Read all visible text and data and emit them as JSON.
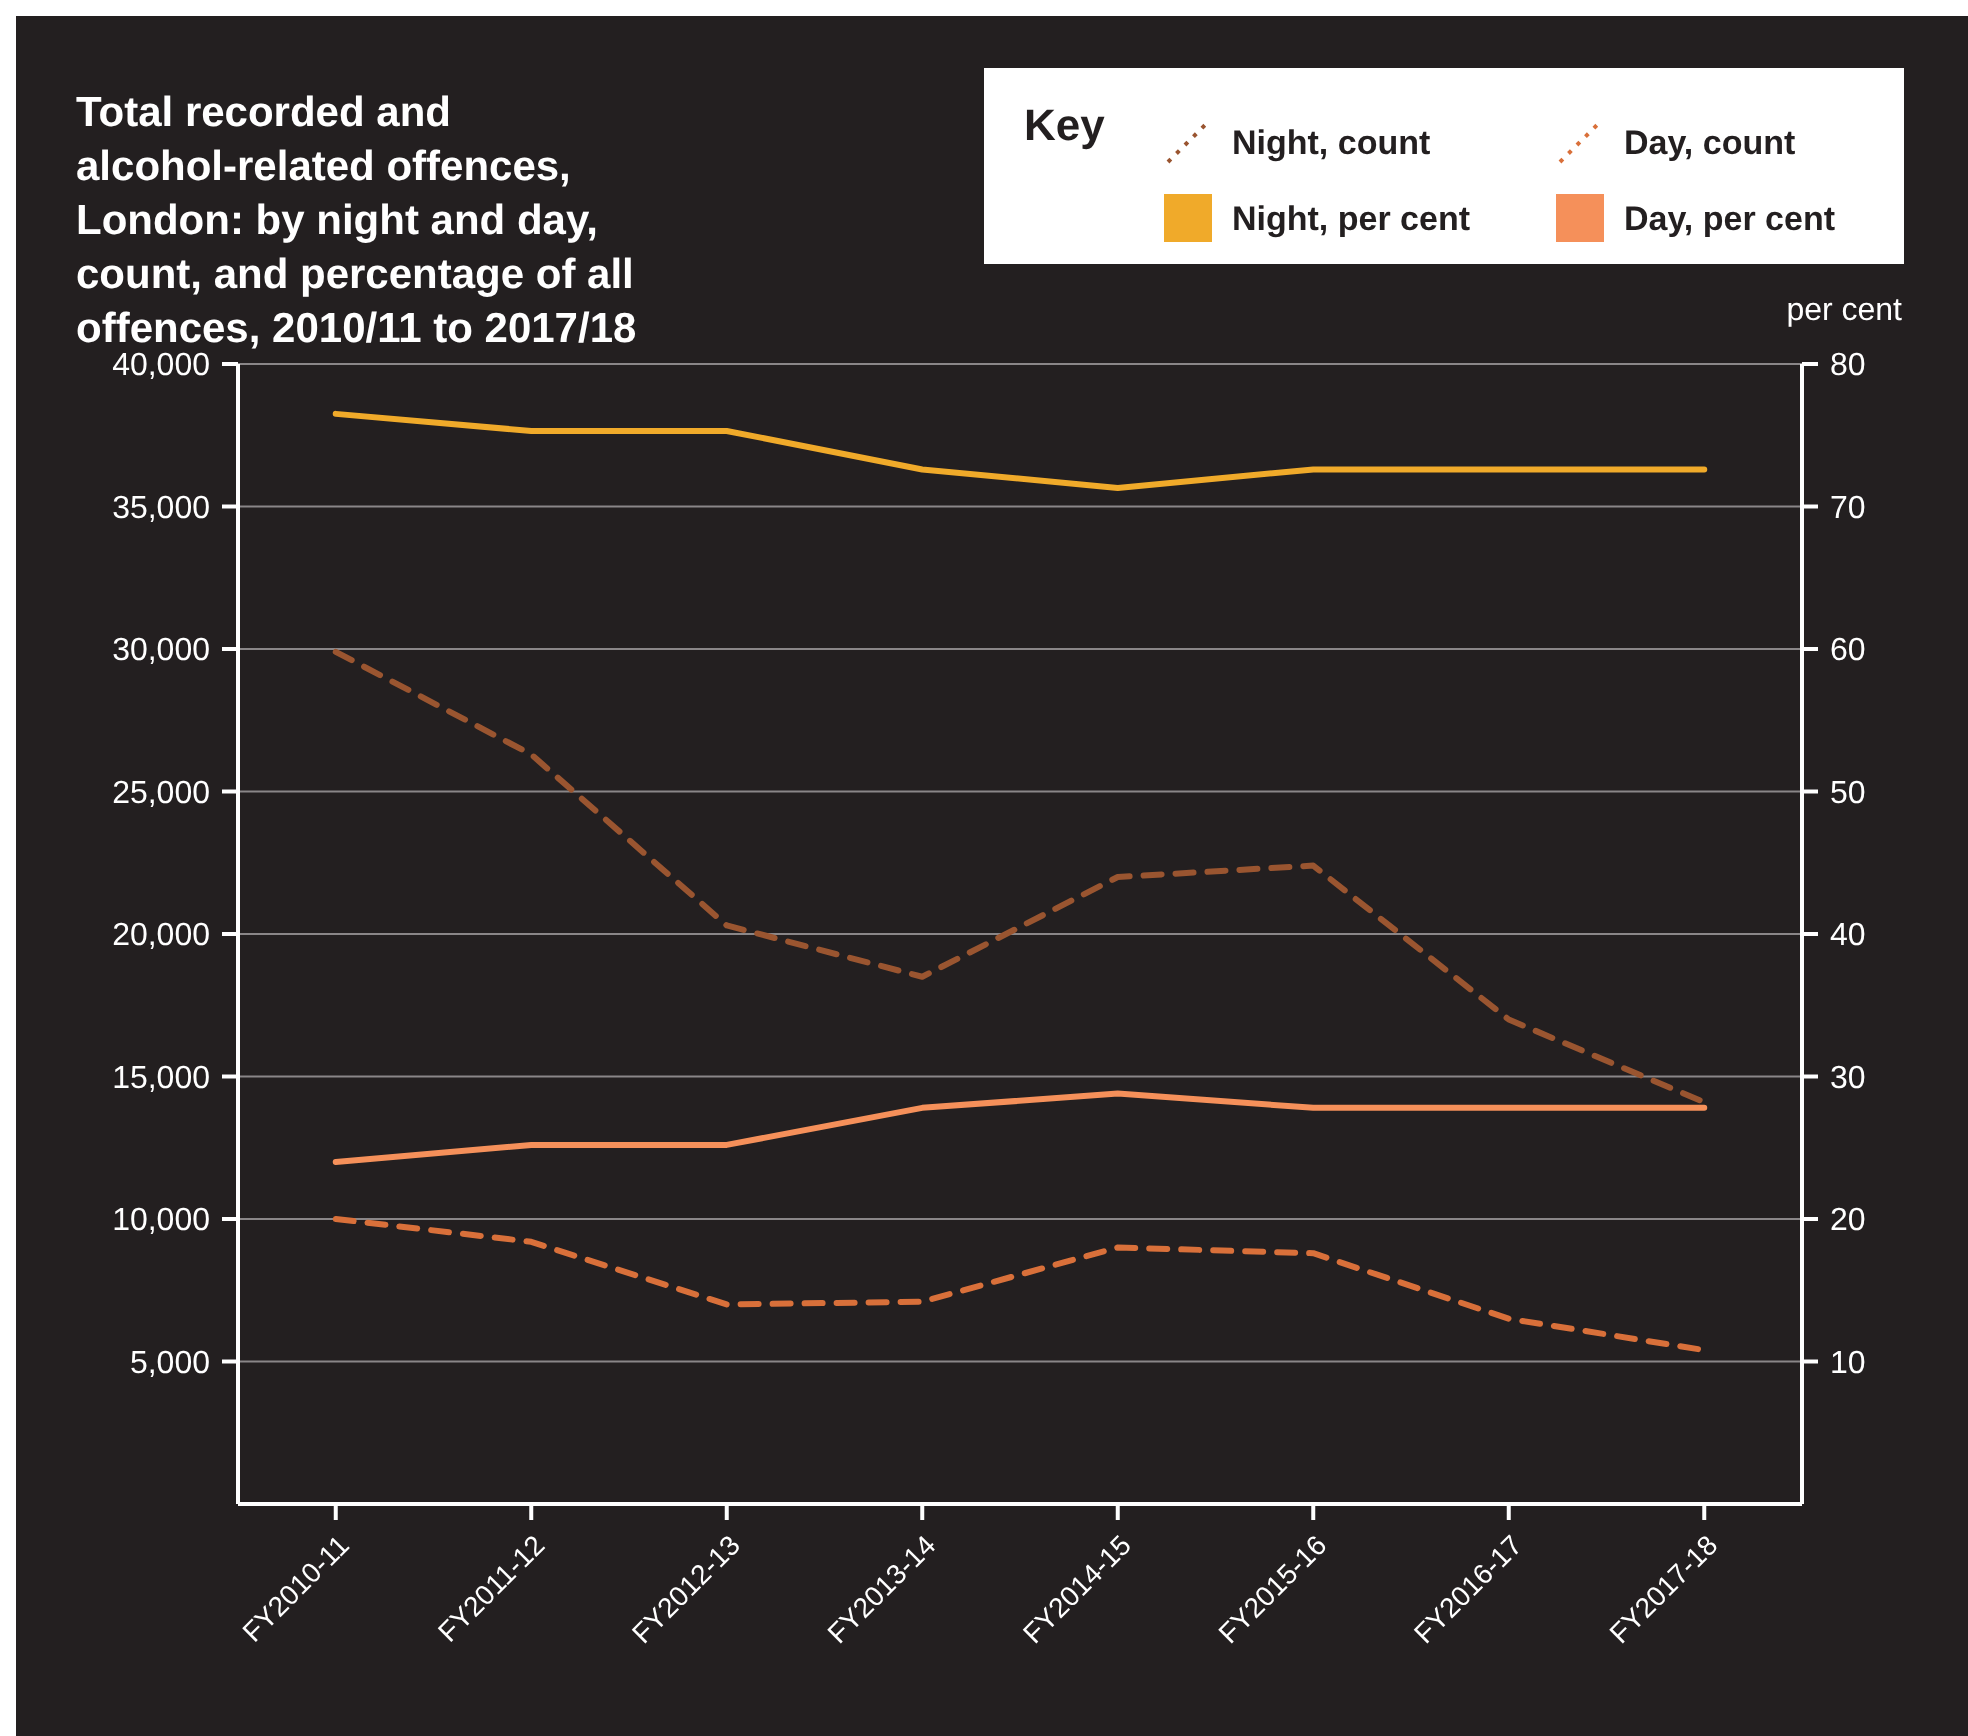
{
  "chart_data": {
    "type": "line",
    "title": "Total recorded and alcohol-related offences, London: by night and day, count, and percentage of all offences, 2010/11 to 2017/18",
    "legend_title": "Key",
    "y2label": "per cent",
    "categories": [
      "FY2010-11",
      "FY2011-12",
      "FY2012-13",
      "FY2013-14",
      "FY2014-15",
      "FY2015-16",
      "FY2016-17",
      "FY2017-18"
    ],
    "series": [
      {
        "name": "Night, count",
        "color": "#9a5530",
        "line_style": "dashed",
        "axis": "y",
        "values": [
          29900,
          26300,
          20300,
          18500,
          22000,
          22400,
          17000,
          14100
        ]
      },
      {
        "name": "Day, count",
        "color": "#d9703a",
        "line_style": "dashed",
        "axis": "y",
        "values": [
          10000,
          9200,
          7000,
          7100,
          9000,
          8800,
          6500,
          5400
        ]
      },
      {
        "name": "Night, per cent",
        "color": "#f0aa2a",
        "line_style": "solid",
        "axis": "y2",
        "values": [
          76.5,
          75.3,
          75.3,
          72.6,
          71.3,
          72.6,
          72.6,
          72.6
        ]
      },
      {
        "name": "Day, per cent",
        "color": "#f5905a",
        "line_style": "solid",
        "axis": "y2",
        "values": [
          24,
          25.2,
          25.2,
          27.8,
          28.8,
          27.8,
          27.8,
          27.8
        ]
      }
    ],
    "ylim": [
      0,
      40000
    ],
    "yticks": [
      {
        "value": 5000,
        "label": "5,000"
      },
      {
        "value": 10000,
        "label": "10,000"
      },
      {
        "value": 15000,
        "label": "15,000"
      },
      {
        "value": 20000,
        "label": "20,000"
      },
      {
        "value": 25000,
        "label": "25,000"
      },
      {
        "value": 30000,
        "label": "30,000"
      },
      {
        "value": 35000,
        "label": "35,000"
      },
      {
        "value": 40000,
        "label": "40,000"
      }
    ],
    "y2lim": [
      0,
      80
    ],
    "y2ticks": [
      10,
      20,
      30,
      40,
      50,
      60,
      70,
      80
    ],
    "grid": "y",
    "legend": "top right",
    "marker": "none"
  }
}
